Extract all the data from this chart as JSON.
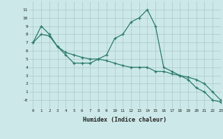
{
  "line1_x": [
    0,
    1,
    2,
    3,
    4,
    5,
    6,
    7,
    8,
    9,
    10,
    11,
    12,
    13,
    14,
    15,
    16,
    17,
    18,
    19,
    20,
    21,
    22,
    23
  ],
  "line1_y": [
    7,
    9,
    8,
    6.5,
    5.5,
    4.5,
    4.5,
    4.5,
    5,
    5.5,
    7.5,
    8,
    9.5,
    10,
    11,
    9,
    4,
    3.5,
    3,
    2.5,
    1.5,
    1,
    0,
    -0.2
  ],
  "line2_x": [
    0,
    1,
    2,
    3,
    4,
    5,
    6,
    7,
    8,
    9,
    10,
    11,
    12,
    13,
    14,
    15,
    16,
    17,
    18,
    19,
    20,
    21,
    22,
    23
  ],
  "line2_y": [
    7,
    8,
    7.8,
    6.5,
    5.8,
    5.5,
    5.2,
    5.0,
    5.0,
    4.8,
    4.5,
    4.2,
    4.0,
    4.0,
    4.0,
    3.5,
    3.5,
    3.2,
    3.0,
    2.8,
    2.5,
    2.0,
    1.0,
    0.0
  ],
  "line_color": "#2a7a6a",
  "bg_color": "#cce8e8",
  "grid_color": "#aac8c8",
  "xlabel": "Humidex (Indice chaleur)",
  "ylim": [
    -1,
    12
  ],
  "xlim": [
    -0.5,
    23
  ],
  "ytick_vals": [
    0,
    1,
    2,
    3,
    4,
    5,
    6,
    7,
    8,
    9,
    10,
    11
  ],
  "ytick_labels": [
    "-0",
    "1",
    "2",
    "3",
    "4",
    "5",
    "6",
    "7",
    "8",
    "9",
    "10",
    "11"
  ],
  "xtick_vals": [
    0,
    1,
    2,
    3,
    4,
    5,
    6,
    7,
    8,
    9,
    10,
    11,
    12,
    13,
    14,
    15,
    16,
    17,
    18,
    19,
    20,
    21,
    22,
    23
  ],
  "xtick_labels": [
    "0",
    "1",
    "2",
    "3",
    "4",
    "5",
    "6",
    "7",
    "8",
    "9",
    "10",
    "11",
    "12",
    "13",
    "14",
    "15",
    "16",
    "17",
    "18",
    "19",
    "20",
    "21",
    "22",
    "23"
  ]
}
